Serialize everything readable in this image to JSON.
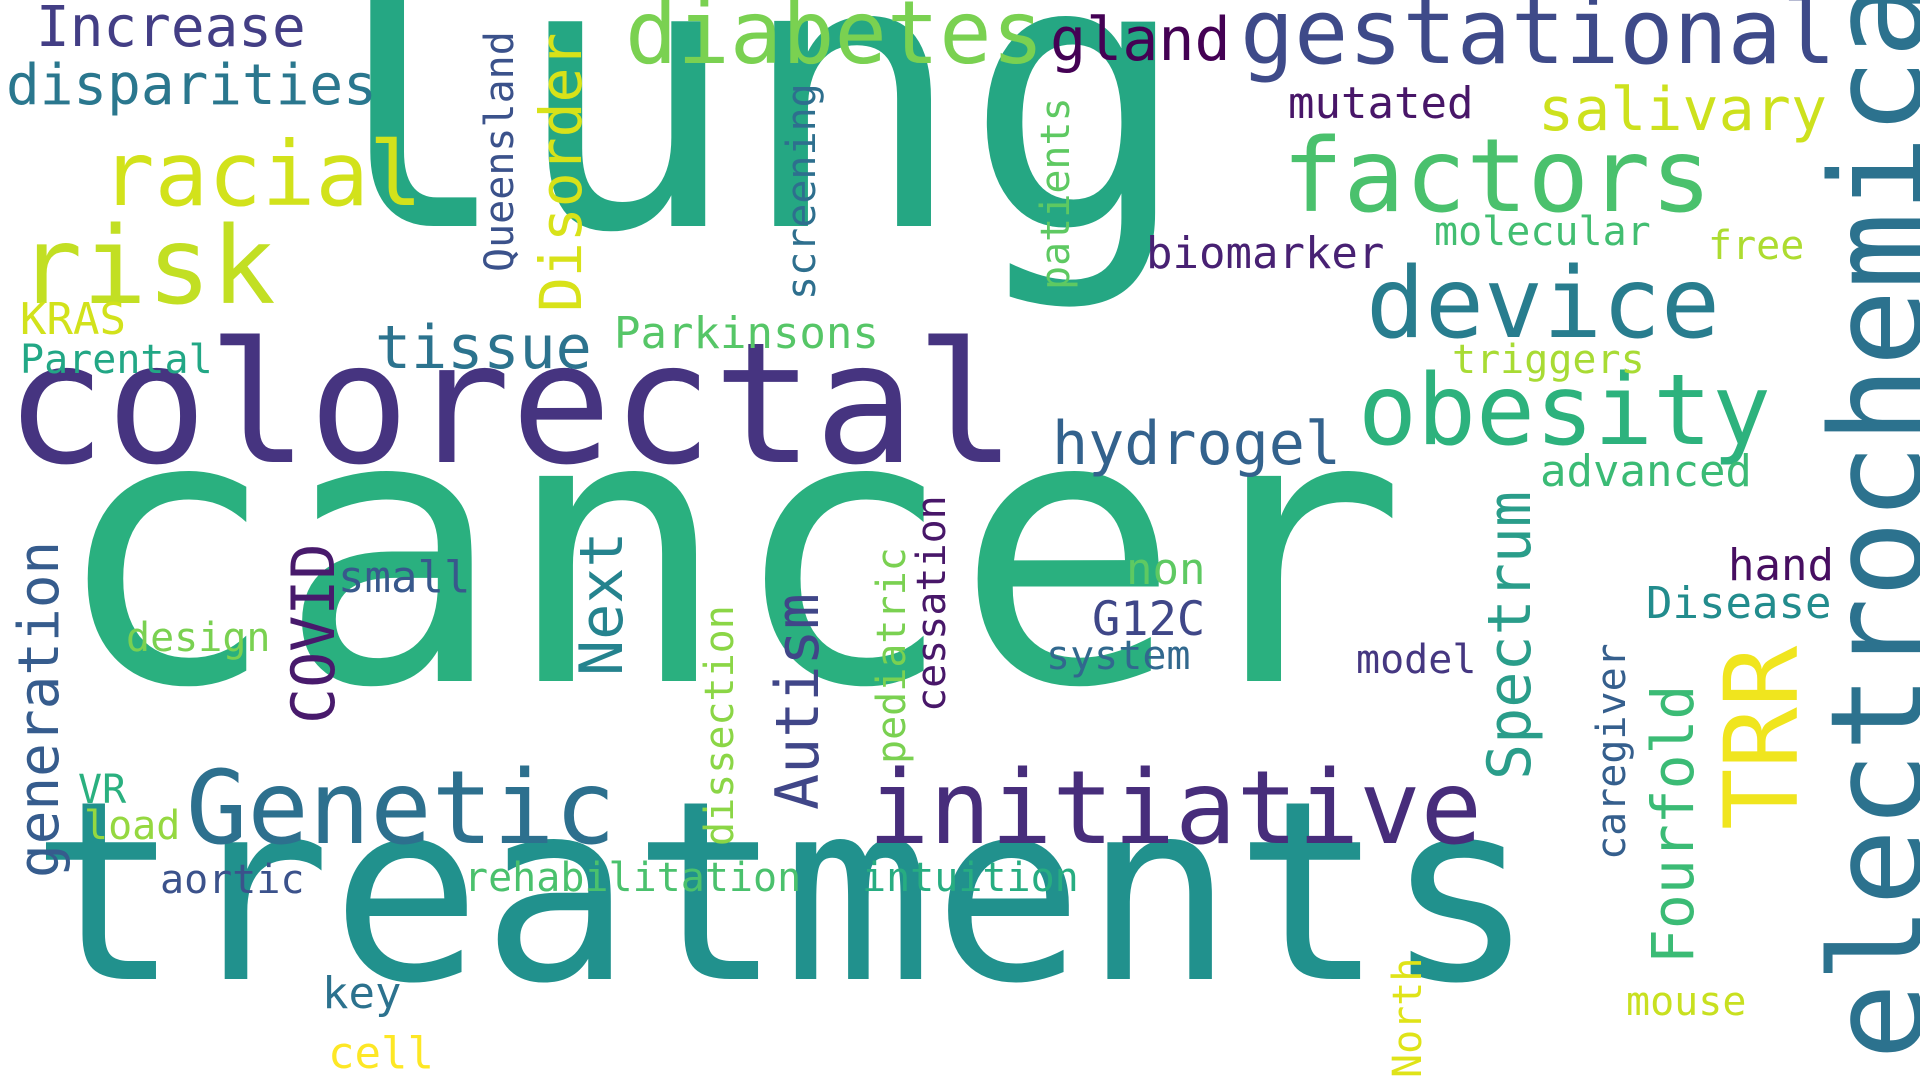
{
  "words": [
    {
      "key": "lung",
      "text": "lung",
      "color": "#25a783"
    },
    {
      "key": "cancer",
      "text": "cancer",
      "color": "#2ab07f"
    },
    {
      "key": "treatments",
      "text": "treatments",
      "color": "#21918d"
    },
    {
      "key": "colorectal",
      "text": "colorectal",
      "color": "#463480"
    },
    {
      "key": "electrochemical",
      "text": "electrochemical",
      "color": "#2c728e"
    },
    {
      "key": "genetic",
      "text": "Genetic",
      "color": "#2d708e"
    },
    {
      "key": "initiative",
      "text": "initiative",
      "color": "#472d7b"
    },
    {
      "key": "factors",
      "text": "factors",
      "color": "#4ac16d"
    },
    {
      "key": "risk",
      "text": "risk",
      "color": "#c2df23"
    },
    {
      "key": "device",
      "text": "device",
      "color": "#287d8e"
    },
    {
      "key": "obesity",
      "text": "obesity",
      "color": "#2db27d"
    },
    {
      "key": "gestational",
      "text": "gestational",
      "color": "#3e4a89"
    },
    {
      "key": "diabetes",
      "text": "diabetes",
      "color": "#7ad151"
    },
    {
      "key": "trr",
      "text": "TRR",
      "color": "#f0e51e"
    },
    {
      "key": "racial",
      "text": "racial",
      "color": "#d2e21b"
    },
    {
      "key": "increase",
      "text": "Increase",
      "color": "#433e85"
    },
    {
      "key": "disparities",
      "text": "disparities",
      "color": "#2a778e"
    },
    {
      "key": "disorder",
      "text": "Disorder",
      "color": "#d8e219"
    },
    {
      "key": "queensland",
      "text": "Queensland",
      "color": "#3b528b"
    },
    {
      "key": "gland",
      "text": "gland",
      "color": "#440154"
    },
    {
      "key": "salivary",
      "text": "salivary",
      "color": "#cde11d"
    },
    {
      "key": "mutated",
      "text": "mutated",
      "color": "#481668"
    },
    {
      "key": "screening",
      "text": "screening",
      "color": "#2e6f8e"
    },
    {
      "key": "patients",
      "text": "patients",
      "color": "#5ec962"
    },
    {
      "key": "molecular",
      "text": "molecular",
      "color": "#42be71"
    },
    {
      "key": "biomarker",
      "text": "biomarker",
      "color": "#482173"
    },
    {
      "key": "free",
      "text": "free",
      "color": "#addc30"
    },
    {
      "key": "kras",
      "text": "KRAS",
      "color": "#d2e21b"
    },
    {
      "key": "parental",
      "text": "Parental",
      "color": "#22a785"
    },
    {
      "key": "tissue",
      "text": "tissue",
      "color": "#2c738e"
    },
    {
      "key": "parkinsons",
      "text": "Parkinsons",
      "color": "#56c667"
    },
    {
      "key": "triggers",
      "text": "triggers",
      "color": "#a8db34"
    },
    {
      "key": "hydrogel",
      "text": "hydrogel",
      "color": "#33628d"
    },
    {
      "key": "advanced",
      "text": "advanced",
      "color": "#3bbb75"
    },
    {
      "key": "generation",
      "text": "generation",
      "color": "#365c8d"
    },
    {
      "key": "covid",
      "text": "COVID",
      "color": "#481a6c"
    },
    {
      "key": "small",
      "text": "small",
      "color": "#38588c"
    },
    {
      "key": "next",
      "text": "Next",
      "color": "#25838e"
    },
    {
      "key": "design",
      "text": "design",
      "color": "#7ad151"
    },
    {
      "key": "autism",
      "text": "Autism",
      "color": "#404688"
    },
    {
      "key": "dissection",
      "text": "dissection",
      "color": "#8bd646"
    },
    {
      "key": "pediatric",
      "text": "pediatric",
      "color": "#7ad151"
    },
    {
      "key": "cessation",
      "text": "cessation",
      "color": "#481769"
    },
    {
      "key": "spectrum",
      "text": "Spectrum",
      "color": "#2a9d8a"
    },
    {
      "key": "non",
      "text": "non",
      "color": "#5ec962"
    },
    {
      "key": "g12c",
      "text": "G12C",
      "color": "#3f4788"
    },
    {
      "key": "system",
      "text": "system",
      "color": "#31688e"
    },
    {
      "key": "model",
      "text": "model",
      "color": "#453781"
    },
    {
      "key": "hand",
      "text": "hand",
      "color": "#470e61"
    },
    {
      "key": "disease",
      "text": "Disease",
      "color": "#228c8d"
    },
    {
      "key": "caregiver",
      "text": "caregiver",
      "color": "#355f8d"
    },
    {
      "key": "fourfold",
      "text": "Fourfold",
      "color": "#3bbb75"
    },
    {
      "key": "vr",
      "text": "VR",
      "color": "#2ab07f"
    },
    {
      "key": "load",
      "text": "load",
      "color": "#95d840"
    },
    {
      "key": "aortic",
      "text": "aortic",
      "color": "#3b528b"
    },
    {
      "key": "rehabilitation",
      "text": "rehabilitation",
      "color": "#4ac16d"
    },
    {
      "key": "intuition",
      "text": "intuition",
      "color": "#27ad81"
    },
    {
      "key": "key",
      "text": "key",
      "color": "#2c728e"
    },
    {
      "key": "cell",
      "text": "cell",
      "color": "#fde725"
    },
    {
      "key": "north",
      "text": "North",
      "color": "#dfe318"
    },
    {
      "key": "mouse",
      "text": "mouse",
      "color": "#c8e020"
    }
  ]
}
